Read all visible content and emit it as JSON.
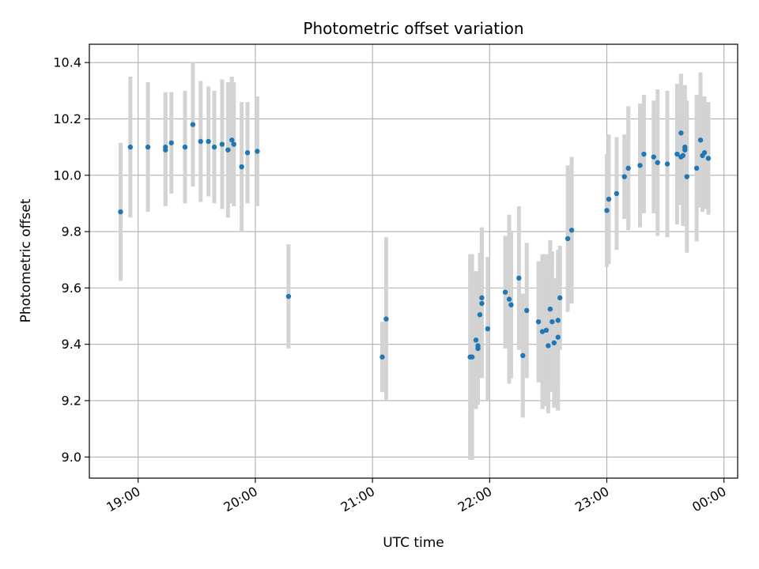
{
  "chart_data": {
    "type": "scatter",
    "title": "Photometric offset variation",
    "xlabel": "UTC time",
    "ylabel": "Photometric offset",
    "xlim": [
      "18:35",
      "00:07"
    ],
    "ylim": [
      8.925,
      10.465
    ],
    "xticks": [
      "19:00",
      "20:00",
      "21:00",
      "22:00",
      "23:00",
      "00:00"
    ],
    "yticks": [
      "9.0",
      "9.2",
      "9.4",
      "9.6",
      "9.8",
      "10.0",
      "10.2",
      "10.4"
    ],
    "grid": true,
    "colors": {
      "point": "#1f77b4",
      "errorbar": "#d3d3d3",
      "grid": "#b0b0b0"
    },
    "series": [
      {
        "x": [
          "18:51",
          "18:56",
          "19:05",
          "19:14",
          "19:14",
          "19:17",
          "19:24",
          "19:28",
          "19:32",
          "19:36",
          "19:39",
          "19:43",
          "19:46",
          "19:48",
          "19:49",
          "19:53",
          "19:56",
          "20:01",
          "20:17",
          "21:05",
          "21:07",
          "21:50",
          "21:51",
          "21:53",
          "21:54",
          "21:54",
          "21:55",
          "21:56",
          "21:56",
          "21:59",
          "22:08",
          "22:10",
          "22:11",
          "22:15",
          "22:17",
          "22:19",
          "22:25",
          "22:27",
          "22:29",
          "22:30",
          "22:31",
          "22:32",
          "22:33",
          "22:35",
          "22:35",
          "22:36",
          "22:40",
          "22:42",
          "23:00",
          "23:01",
          "23:05",
          "23:09",
          "23:11",
          "23:17",
          "23:19",
          "23:24",
          "23:26",
          "23:31",
          "23:36",
          "23:38",
          "23:38",
          "23:39",
          "23:40",
          "23:40",
          "23:41",
          "23:46",
          "23:48",
          "23:49",
          "23:50",
          "23:52"
        ],
        "y": [
          9.87,
          10.1,
          10.1,
          10.09,
          10.1,
          10.115,
          10.1,
          10.18,
          10.12,
          10.12,
          10.1,
          10.11,
          10.09,
          10.125,
          10.11,
          10.03,
          10.08,
          10.085,
          9.57,
          9.355,
          9.49,
          9.355,
          9.355,
          9.415,
          9.385,
          9.395,
          9.505,
          9.545,
          9.565,
          9.455,
          9.585,
          9.56,
          9.54,
          9.635,
          9.36,
          9.52,
          9.48,
          9.445,
          9.45,
          9.395,
          9.525,
          9.48,
          9.405,
          9.425,
          9.485,
          9.565,
          9.775,
          9.805,
          9.875,
          9.915,
          9.935,
          9.995,
          10.025,
          10.035,
          10.075,
          10.065,
          10.045,
          10.04,
          10.075,
          10.15,
          10.065,
          10.07,
          10.1,
          10.09,
          9.995,
          10.025,
          10.125,
          10.07,
          10.08,
          10.06
        ],
        "yerr": [
          0.245,
          0.25,
          0.23,
          0.2,
          0.195,
          0.18,
          0.2,
          0.22,
          0.215,
          0.195,
          0.2,
          0.23,
          0.24,
          0.225,
          0.22,
          0.23,
          0.18,
          0.195,
          0.185,
          0.125,
          0.29,
          0.365,
          0.365,
          0.245,
          0.2,
          0.19,
          0.22,
          0.265,
          0.25,
          0.255,
          0.2,
          0.3,
          0.26,
          0.255,
          0.22,
          0.24,
          0.215,
          0.275,
          0.27,
          0.24,
          0.245,
          0.25,
          0.23,
          0.26,
          0.25,
          0.185,
          0.26,
          0.26,
          0.2,
          0.23,
          0.2,
          0.15,
          0.22,
          0.22,
          0.21,
          0.2,
          0.26,
          0.26,
          0.25,
          0.21,
          0.17,
          0.25,
          0.22,
          0.19,
          0.27,
          0.26,
          0.24,
          0.2,
          0.2,
          0.2
        ]
      }
    ]
  }
}
